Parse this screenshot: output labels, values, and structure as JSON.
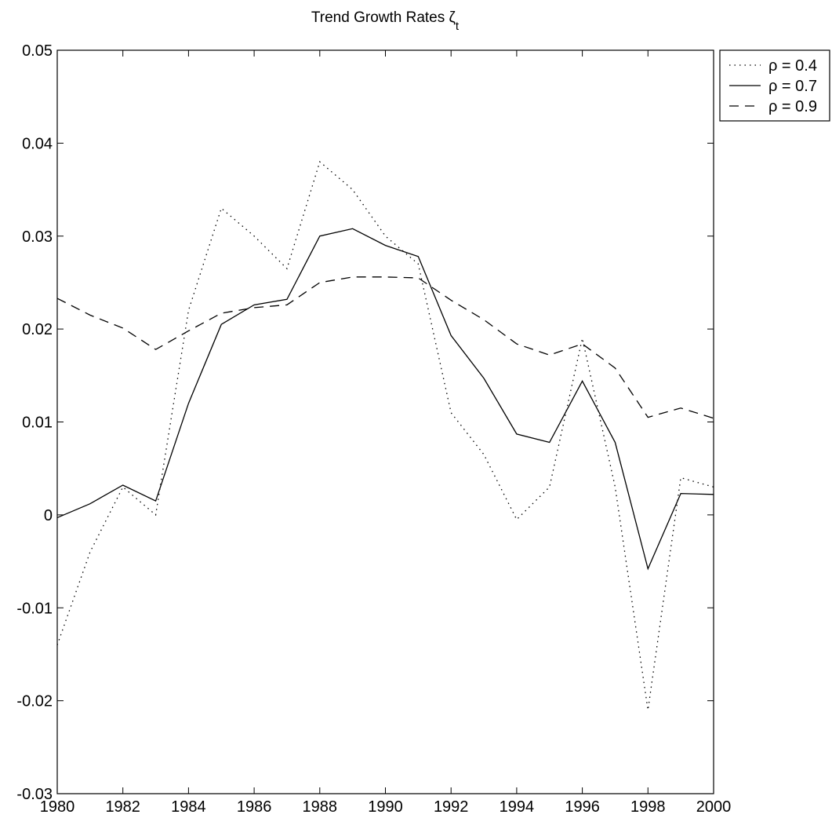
{
  "chart_data": {
    "type": "line",
    "title": "Trend Growth Rates ζ",
    "title_subscript": "t",
    "x": [
      1980,
      1981,
      1982,
      1983,
      1984,
      1985,
      1986,
      1987,
      1988,
      1989,
      1990,
      1991,
      1992,
      1993,
      1994,
      1995,
      1996,
      1997,
      1998,
      1999,
      2000
    ],
    "series": [
      {
        "name": "ρ = 0.4",
        "color": "#000000",
        "dash": "dotted",
        "values": [
          -0.014,
          -0.004,
          0.003,
          0.0,
          0.022,
          0.033,
          0.03,
          0.0265,
          0.038,
          0.035,
          0.03,
          0.027,
          0.011,
          0.0065,
          -0.0005,
          0.003,
          0.019,
          0.003,
          -0.021,
          0.004,
          0.003
        ]
      },
      {
        "name": "ρ = 0.7",
        "color": "#000000",
        "dash": "solid",
        "values": [
          -0.0003,
          0.0012,
          0.0032,
          0.0015,
          0.012,
          0.0205,
          0.0226,
          0.0232,
          0.03,
          0.0308,
          0.029,
          0.0278,
          0.0193,
          0.0147,
          0.0087,
          0.0078,
          0.0144,
          0.0078,
          -0.0058,
          0.0023,
          0.0022
        ]
      },
      {
        "name": "ρ = 0.9",
        "color": "#000000",
        "dash": "dashed",
        "values": [
          0.0233,
          0.0215,
          0.0201,
          0.0178,
          0.0198,
          0.0217,
          0.0223,
          0.0226,
          0.025,
          0.0256,
          0.0256,
          0.0255,
          0.0231,
          0.021,
          0.0184,
          0.0172,
          0.0184,
          0.0158,
          0.0105,
          0.0115,
          0.0104
        ]
      }
    ],
    "xlim": [
      1980,
      2000
    ],
    "xticks": [
      1980,
      1982,
      1984,
      1986,
      1988,
      1990,
      1992,
      1994,
      1996,
      1998,
      2000
    ],
    "ylim": [
      -0.03,
      0.05
    ],
    "yticks": [
      -0.03,
      -0.02,
      -0.01,
      0,
      0.01,
      0.02,
      0.03,
      0.04,
      0.05
    ],
    "legend": "outside-right-top"
  }
}
